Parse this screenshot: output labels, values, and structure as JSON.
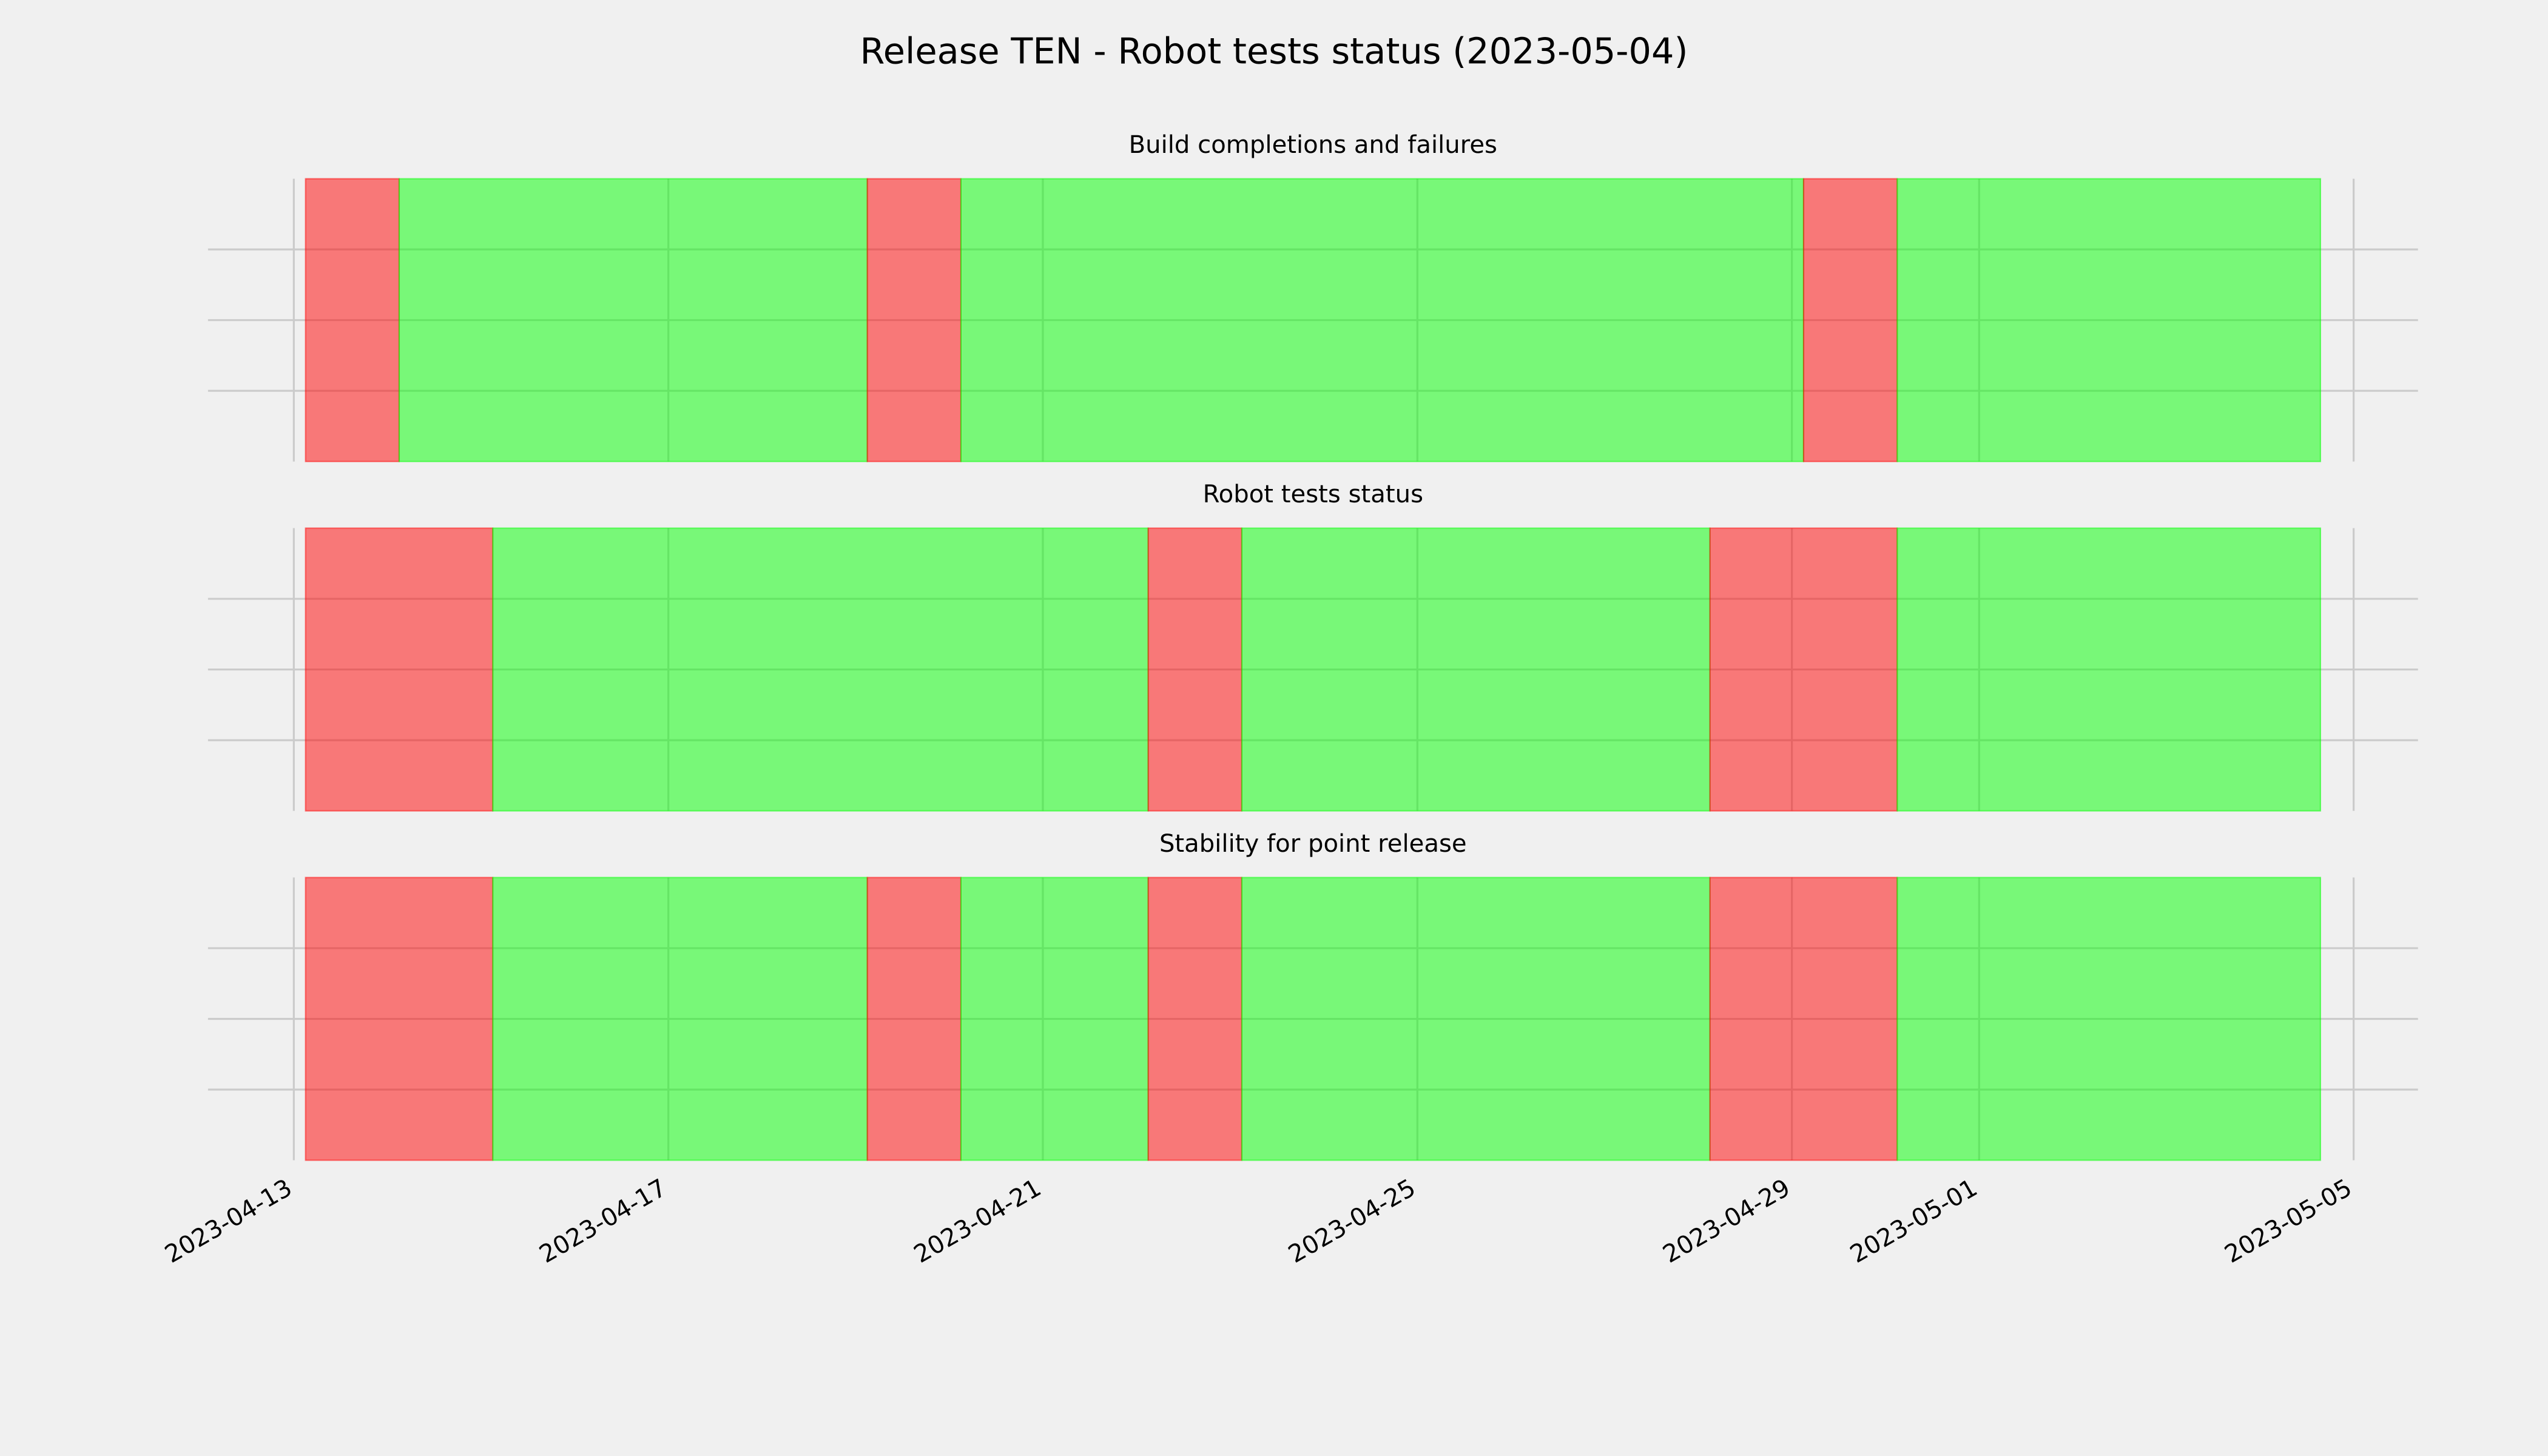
{
  "title": "Release TEN - Robot tests status (2023-05-04)",
  "chart_data": [
    {
      "type": "timeline",
      "title": "Build completions and failures",
      "colors": {
        "fail": "#ff0000",
        "pass": "#00ff00"
      },
      "spans": [
        {
          "start": "2023-04-13T03:00",
          "end": "2023-04-14T03:00",
          "status": "fail"
        },
        {
          "start": "2023-04-14T03:00",
          "end": "2023-04-19T03:00",
          "status": "pass"
        },
        {
          "start": "2023-04-19T03:00",
          "end": "2023-04-20T03:00",
          "status": "fail"
        },
        {
          "start": "2023-04-20T03:00",
          "end": "2023-04-29T03:00",
          "status": "pass"
        },
        {
          "start": "2023-04-29T03:00",
          "end": "2023-04-30T03:00",
          "status": "fail"
        },
        {
          "start": "2023-04-30T03:00",
          "end": "2023-05-04T15:30",
          "status": "pass"
        }
      ],
      "xlim": [
        "2023-04-12T02:00",
        "2023-05-05T16:30"
      ],
      "xticks": [
        "2023-04-13",
        "2023-04-17",
        "2023-04-21",
        "2023-04-25",
        "2023-04-29",
        "2023-05-01",
        "2023-05-05"
      ],
      "ylim": [
        0,
        1
      ],
      "yticks": [
        0.25,
        0.5,
        0.75
      ],
      "grid": true
    },
    {
      "type": "timeline",
      "title": "Robot tests status",
      "colors": {
        "fail": "#ff0000",
        "pass": "#00ff00"
      },
      "spans": [
        {
          "start": "2023-04-13T03:00",
          "end": "2023-04-15T03:00",
          "status": "fail"
        },
        {
          "start": "2023-04-15T03:00",
          "end": "2023-04-22T03:00",
          "status": "pass"
        },
        {
          "start": "2023-04-22T03:00",
          "end": "2023-04-23T03:00",
          "status": "fail"
        },
        {
          "start": "2023-04-23T03:00",
          "end": "2023-04-28T03:00",
          "status": "pass"
        },
        {
          "start": "2023-04-28T03:00",
          "end": "2023-04-30T03:00",
          "status": "fail"
        },
        {
          "start": "2023-04-30T03:00",
          "end": "2023-05-04T15:30",
          "status": "pass"
        }
      ],
      "xlim": [
        "2023-04-12T02:00",
        "2023-05-05T16:30"
      ],
      "xticks": [
        "2023-04-13",
        "2023-04-17",
        "2023-04-21",
        "2023-04-25",
        "2023-04-29",
        "2023-05-01",
        "2023-05-05"
      ],
      "ylim": [
        0,
        1
      ],
      "yticks": [
        0.25,
        0.5,
        0.75
      ],
      "grid": true
    },
    {
      "type": "timeline",
      "title": "Stability for point release",
      "colors": {
        "fail": "#ff0000",
        "pass": "#00ff00"
      },
      "spans": [
        {
          "start": "2023-04-13T03:00",
          "end": "2023-04-15T03:00",
          "status": "fail"
        },
        {
          "start": "2023-04-15T03:00",
          "end": "2023-04-19T03:00",
          "status": "pass"
        },
        {
          "start": "2023-04-19T03:00",
          "end": "2023-04-20T03:00",
          "status": "fail"
        },
        {
          "start": "2023-04-20T03:00",
          "end": "2023-04-22T03:00",
          "status": "pass"
        },
        {
          "start": "2023-04-22T03:00",
          "end": "2023-04-23T03:00",
          "status": "fail"
        },
        {
          "start": "2023-04-23T03:00",
          "end": "2023-04-28T03:00",
          "status": "pass"
        },
        {
          "start": "2023-04-28T03:00",
          "end": "2023-04-30T03:00",
          "status": "fail"
        },
        {
          "start": "2023-04-30T03:00",
          "end": "2023-05-04T15:30",
          "status": "pass"
        }
      ],
      "xlim": [
        "2023-04-12T02:00",
        "2023-05-05T16:30"
      ],
      "xticks": [
        "2023-04-13",
        "2023-04-17",
        "2023-04-21",
        "2023-04-25",
        "2023-04-29",
        "2023-05-01",
        "2023-05-05"
      ],
      "ylim": [
        0,
        1
      ],
      "yticks": [
        0.25,
        0.5,
        0.75
      ],
      "grid": true
    }
  ]
}
